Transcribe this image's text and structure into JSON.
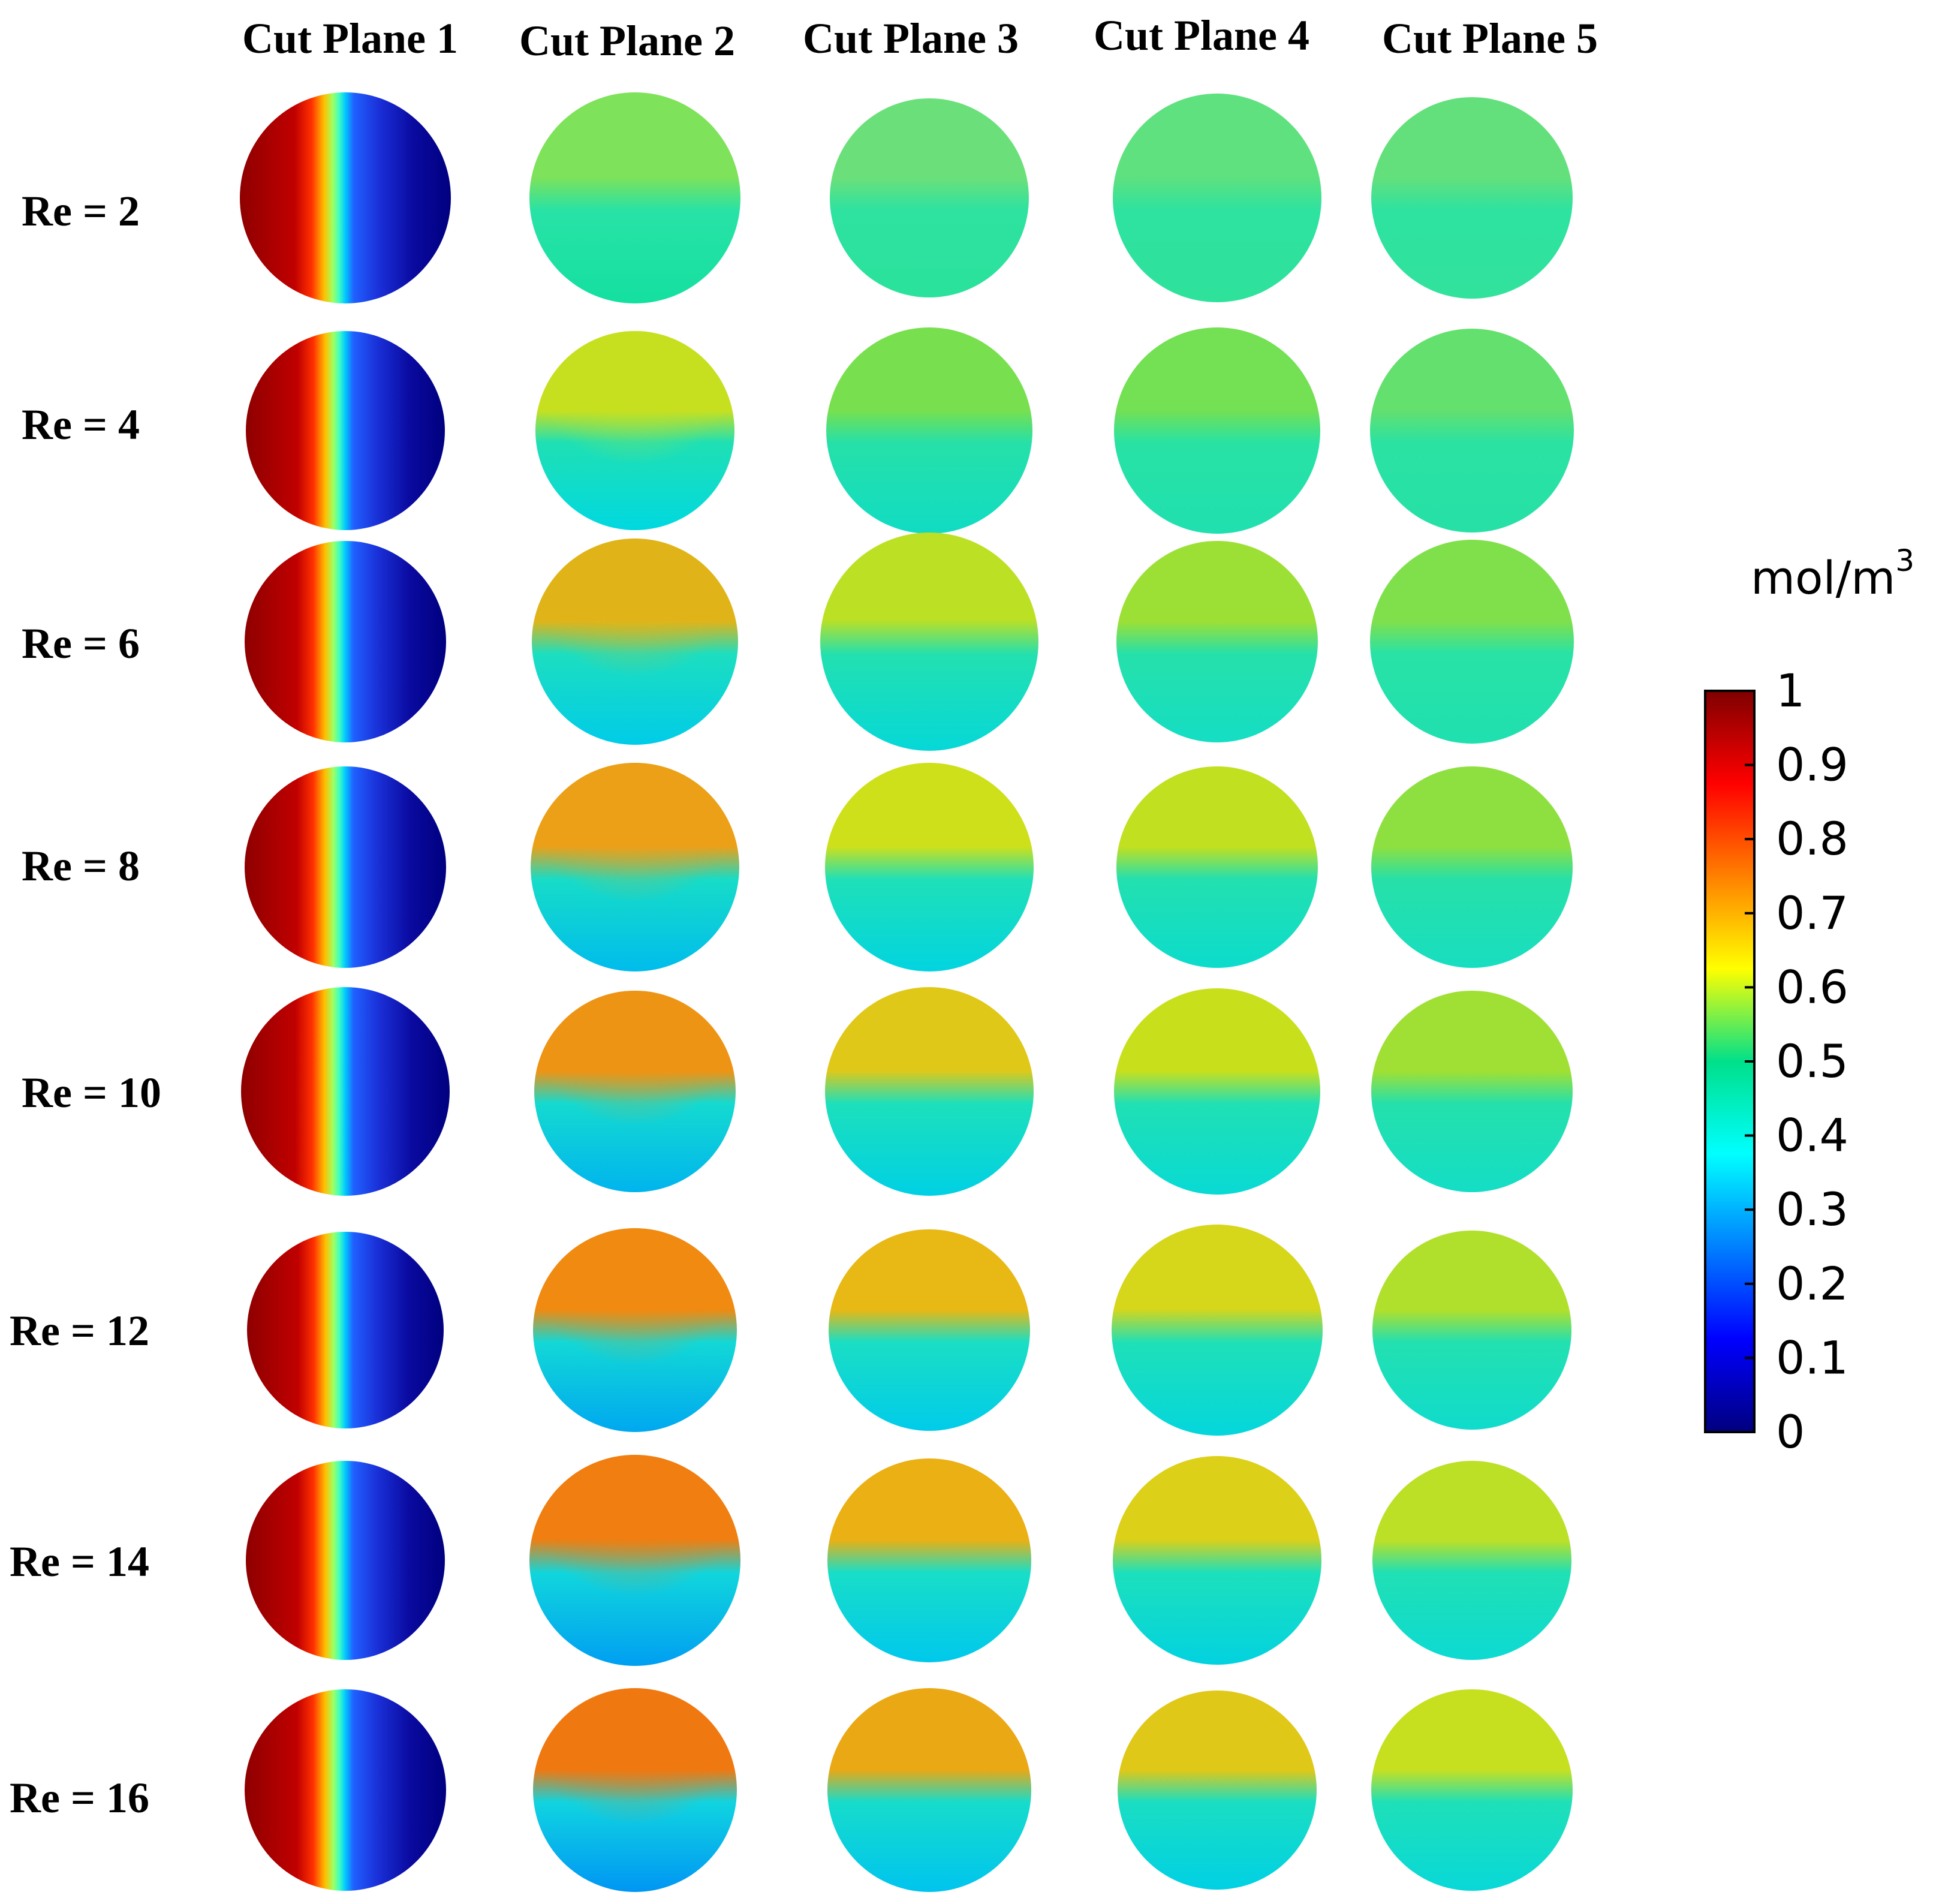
{
  "figure": {
    "column_headers": [
      "Cut Plane 1",
      "Cut Plane 2",
      "Cut Plane 3",
      "Cut Plane 4",
      "Cut Plane 5"
    ],
    "row_labels": [
      "Re = 2",
      "Re = 4",
      "Re = 6",
      "Re = 8",
      "Re = 10",
      "Re = 12",
      "Re = 14",
      "Re = 16"
    ],
    "colorbar": {
      "unit_base": "mol/m",
      "unit_exponent": "3",
      "ticks": [
        "1",
        "0.9",
        "0.8",
        "0.7",
        "0.6",
        "0.5",
        "0.4",
        "0.3",
        "0.2",
        "0.1",
        "0"
      ],
      "range": [
        0,
        1
      ],
      "colormap": [
        "#00007f",
        "#0000ff",
        "#0080ff",
        "#00ffff",
        "#80ff80",
        "#ffff00",
        "#ff8000",
        "#ff0000",
        "#7f0000"
      ]
    }
  }
}
